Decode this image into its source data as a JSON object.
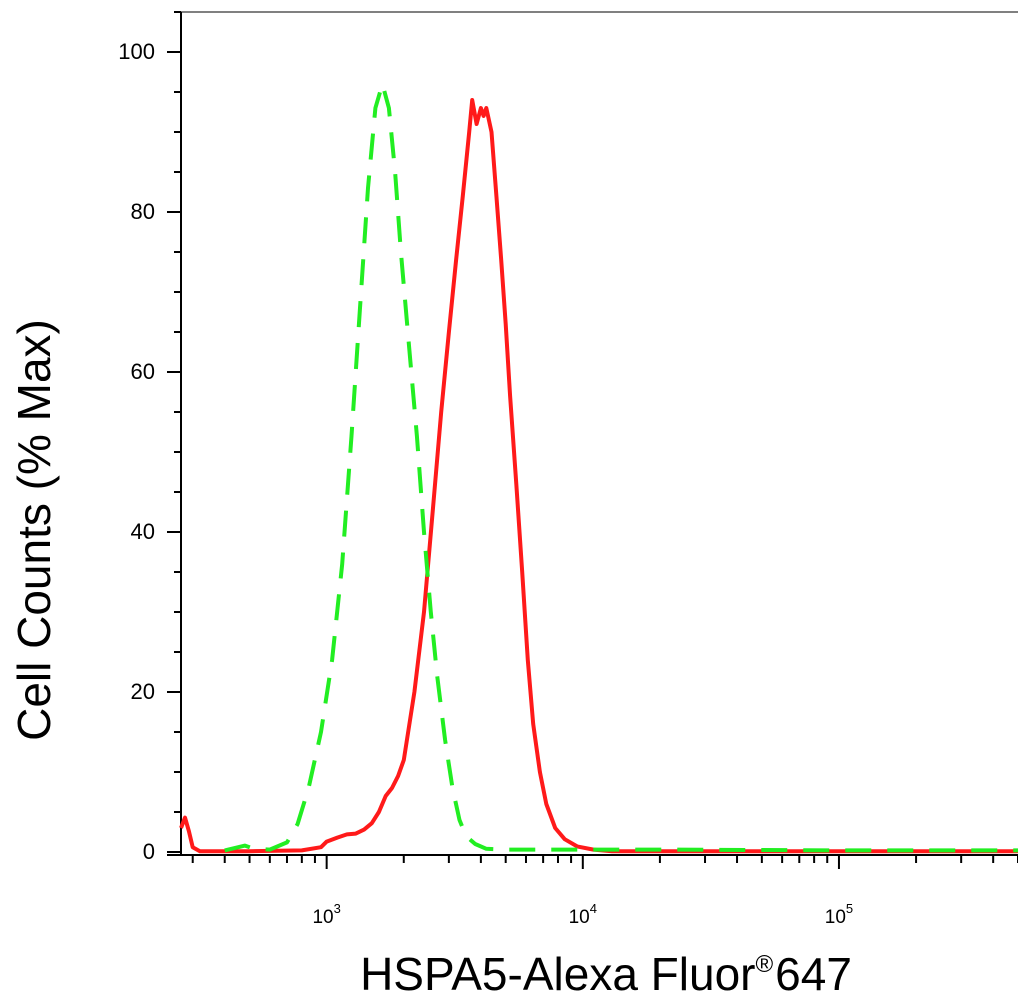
{
  "chart_data": {
    "type": "line",
    "xlabel": "HSPA5-Alexa Fluor",
    "xlabel_mark": "®",
    "xlabel_suffix": "647",
    "ylabel": "Cell Counts (% Max)",
    "x_scale": "log",
    "xlim": [
      270,
      500000
    ],
    "ylim": [
      0,
      105
    ],
    "y_ticks": [
      0,
      20,
      40,
      60,
      80,
      100
    ],
    "y_tick_labels": [
      "0",
      "20",
      "40",
      "60",
      "80",
      "100"
    ],
    "x_ticks": [
      1000,
      10000,
      100000
    ],
    "x_tick_labels": [
      {
        "base": "10",
        "exp": "3"
      },
      {
        "base": "10",
        "exp": "4"
      },
      {
        "base": "10",
        "exp": "5"
      }
    ],
    "grid": false,
    "series": [
      {
        "color": "#ff1a1a",
        "style": "solid",
        "points": [
          [
            270,
            3
          ],
          [
            280,
            4.3
          ],
          [
            290,
            2.6
          ],
          [
            300,
            0.6
          ],
          [
            320,
            0.1
          ],
          [
            500,
            0.1
          ],
          [
            800,
            0.2
          ],
          [
            950,
            0.6
          ],
          [
            1000,
            1.3
          ],
          [
            1100,
            1.8
          ],
          [
            1200,
            2.2
          ],
          [
            1300,
            2.3
          ],
          [
            1400,
            2.8
          ],
          [
            1500,
            3.6
          ],
          [
            1600,
            5
          ],
          [
            1700,
            7
          ],
          [
            1800,
            8
          ],
          [
            1900,
            9.5
          ],
          [
            2000,
            11.5
          ],
          [
            2200,
            20
          ],
          [
            2400,
            30
          ],
          [
            2600,
            43
          ],
          [
            2800,
            55
          ],
          [
            3000,
            65
          ],
          [
            3200,
            74
          ],
          [
            3400,
            82
          ],
          [
            3600,
            90
          ],
          [
            3700,
            94
          ],
          [
            3850,
            91
          ],
          [
            4000,
            93
          ],
          [
            4100,
            92
          ],
          [
            4200,
            93
          ],
          [
            4400,
            90
          ],
          [
            4600,
            82
          ],
          [
            4800,
            74
          ],
          [
            5000,
            66
          ],
          [
            5200,
            57
          ],
          [
            5500,
            46
          ],
          [
            5800,
            35
          ],
          [
            6100,
            24
          ],
          [
            6400,
            16
          ],
          [
            6800,
            10
          ],
          [
            7200,
            6
          ],
          [
            7800,
            3
          ],
          [
            8500,
            1.6
          ],
          [
            9500,
            0.7
          ],
          [
            11000,
            0.3
          ],
          [
            13000,
            0.1
          ],
          [
            500000,
            0.1
          ]
        ]
      },
      {
        "color": "#22ee22",
        "style": "dashed",
        "points": [
          [
            400,
            0.2
          ],
          [
            480,
            0.8
          ],
          [
            520,
            0.4
          ],
          [
            600,
            0.3
          ],
          [
            700,
            1.2
          ],
          [
            770,
            3.5
          ],
          [
            850,
            8
          ],
          [
            950,
            15
          ],
          [
            1050,
            24
          ],
          [
            1150,
            36
          ],
          [
            1250,
            52
          ],
          [
            1350,
            68
          ],
          [
            1450,
            83
          ],
          [
            1550,
            93
          ],
          [
            1650,
            96
          ],
          [
            1750,
            93
          ],
          [
            1850,
            85
          ],
          [
            1950,
            75
          ],
          [
            2100,
            63
          ],
          [
            2250,
            52
          ],
          [
            2400,
            40
          ],
          [
            2550,
            30
          ],
          [
            2700,
            22
          ],
          [
            2900,
            14
          ],
          [
            3100,
            8
          ],
          [
            3300,
            4
          ],
          [
            3500,
            2
          ],
          [
            3800,
            1
          ],
          [
            4200,
            0.4
          ],
          [
            5000,
            0.3
          ],
          [
            7000,
            0.3
          ],
          [
            20000,
            0.3
          ],
          [
            100000,
            0.2
          ],
          [
            500000,
            0.2
          ]
        ]
      }
    ]
  }
}
